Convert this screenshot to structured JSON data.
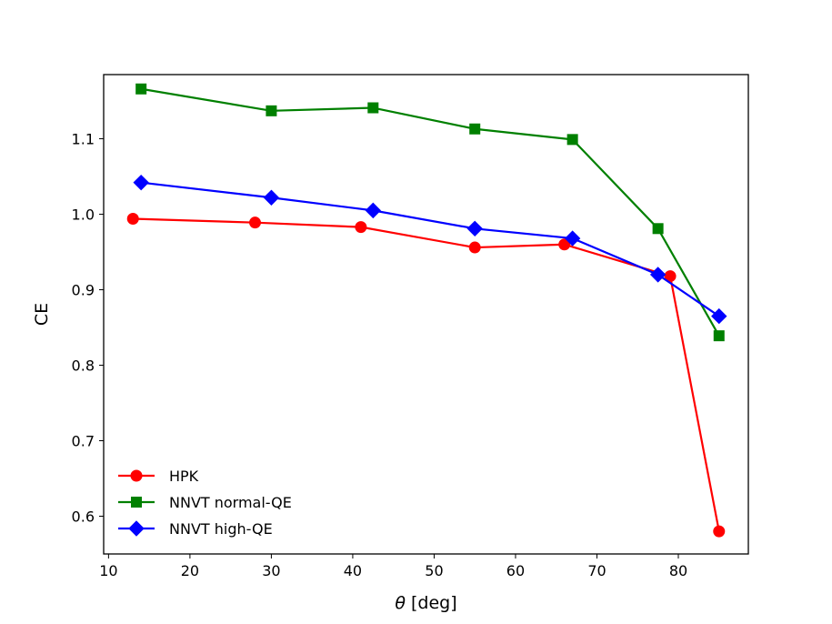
{
  "chart_data": {
    "type": "line",
    "title": "",
    "xlabel_symbol": "θ",
    "xlabel_unit": "[deg]",
    "ylabel": "CE",
    "xlim": [
      9.4,
      88.6
    ],
    "ylim": [
      0.55,
      1.185
    ],
    "xticks": [
      10,
      20,
      30,
      40,
      50,
      60,
      70,
      80
    ],
    "yticks": [
      0.6,
      0.7,
      0.8,
      0.9,
      1.0,
      1.1
    ],
    "ytick_labels": [
      "0.6",
      "0.7",
      "0.8",
      "0.9",
      "1.0",
      "1.1"
    ],
    "grid": false,
    "legend_position": "lower-left",
    "series": [
      {
        "name": "HPK",
        "color": "#ff0000",
        "marker": "circle",
        "x": [
          13,
          28,
          41,
          55,
          66,
          79,
          85
        ],
        "y": [
          0.994,
          0.989,
          0.983,
          0.956,
          0.96,
          0.918,
          0.58
        ]
      },
      {
        "name": "NNVT normal-QE",
        "color": "#008000",
        "marker": "square",
        "x": [
          14,
          30,
          42.5,
          55,
          67,
          77.5,
          85
        ],
        "y": [
          1.166,
          1.137,
          1.141,
          1.113,
          1.099,
          0.981,
          0.839
        ]
      },
      {
        "name": "NNVT high-QE",
        "color": "#0000ff",
        "marker": "diamond",
        "x": [
          14,
          30,
          42.5,
          55,
          67,
          77.5,
          85
        ],
        "y": [
          1.042,
          1.022,
          1.005,
          0.981,
          0.968,
          0.92,
          0.865
        ]
      }
    ]
  }
}
